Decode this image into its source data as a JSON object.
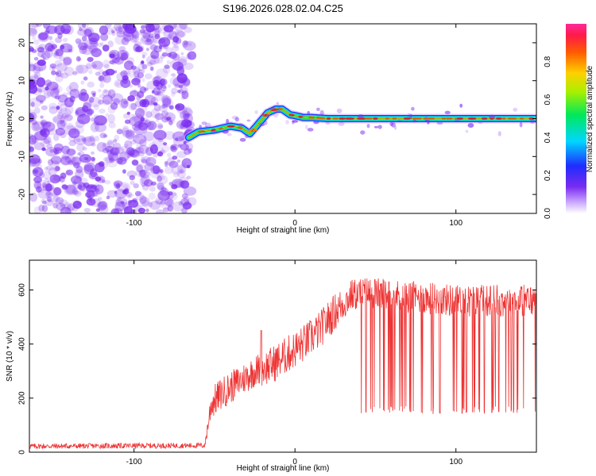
{
  "title": "S196.2026.028.02.04.C25",
  "colors": {
    "snr_line": "#ee3333",
    "frame": "#000000",
    "noise_dot": "#7a2cf0"
  },
  "chart_data": [
    {
      "type": "heatmap",
      "name": "spectrogram",
      "xlabel": "Height of straight line (km)",
      "ylabel": "Frequency (Hz)",
      "xlim": [
        -165,
        150
      ],
      "ylim": [
        -25,
        25
      ],
      "xticks": [
        -100,
        0,
        100
      ],
      "xtick_labels": [
        "-100",
        "0",
        "100"
      ],
      "yticks": [
        -20,
        -10,
        0,
        10,
        20
      ],
      "ytick_labels": [
        "-20",
        "-10",
        "0",
        "10",
        "20"
      ],
      "noise_region_x": [
        -165,
        -65
      ],
      "ridge": {
        "x": [
          -66,
          -60,
          -50,
          -40,
          -33,
          -28,
          -22,
          -17,
          -12,
          -8,
          -3,
          0,
          5,
          10,
          20,
          40,
          60,
          80,
          100,
          120,
          150
        ],
        "freq": [
          -5,
          -3.5,
          -3,
          -2,
          -2.5,
          -4,
          -1,
          1.5,
          2.5,
          2.5,
          1,
          0.8,
          0.3,
          0.3,
          0,
          0,
          0,
          0,
          0,
          0,
          0
        ]
      },
      "colorbar": {
        "label": "Normalized spectral amplitude",
        "range": [
          0,
          1
        ],
        "ticks": [
          0.0,
          0.2,
          0.4,
          0.6,
          0.8
        ],
        "tick_labels": [
          "0.0",
          "0.2",
          "0.4",
          "0.6",
          "0.8"
        ]
      }
    },
    {
      "type": "line",
      "name": "snr",
      "xlabel": "Height of straight line (km)",
      "ylabel": "SNR (10 * v/v)",
      "xlim": [
        -165,
        150
      ],
      "ylim": [
        0,
        710
      ],
      "xticks": [
        -100,
        0,
        100
      ],
      "xtick_labels": [
        "-100",
        "0",
        "100"
      ],
      "yticks": [
        0,
        200,
        400,
        600
      ],
      "ytick_labels": [
        "0",
        "200",
        "400",
        "600"
      ],
      "envelope": {
        "x": [
          -165,
          -56,
          -52,
          -45,
          -35,
          -25,
          -15,
          -5,
          5,
          15,
          25,
          35,
          45,
          60,
          80,
          100,
          120,
          150
        ],
        "snr": [
          22,
          25,
          180,
          220,
          260,
          300,
          320,
          360,
          400,
          450,
          520,
          580,
          590,
          580,
          570,
          560,
          560,
          560
        ],
        "noise": [
          10,
          10,
          60,
          60,
          60,
          60,
          70,
          70,
          70,
          70,
          70,
          60,
          60,
          60,
          60,
          60,
          60,
          60
        ]
      },
      "spike": {
        "x": -21,
        "y": 450
      },
      "dropouts_from_x": 40,
      "dropout_level": 150
    }
  ]
}
